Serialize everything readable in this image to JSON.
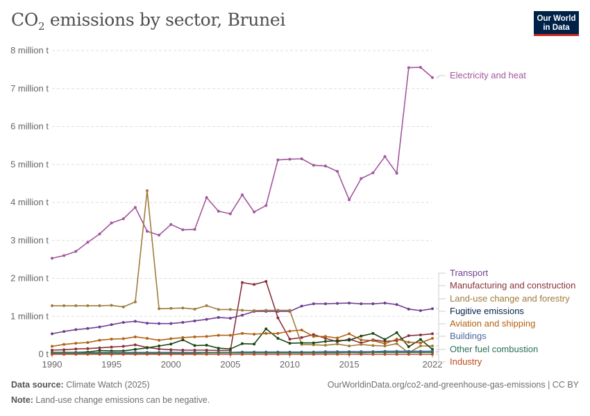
{
  "header": {
    "title_main": "CO",
    "title_sub": "2",
    "title_rest": " emissions by sector, Brunei",
    "logo_line1": "Our World",
    "logo_line2": "in Data"
  },
  "footer": {
    "source_label": "Data source:",
    "source_value": " Climate Watch (2025)",
    "note_label": "Note:",
    "note_value": " Land-use change emissions can be negative.",
    "url": "OurWorldinData.org/co2-and-greenhouse-gas-emissions | CC BY"
  },
  "chart_data": {
    "type": "line",
    "y_tick_labels": [
      "0 t",
      "1 million t",
      "2 million t",
      "3 million t",
      "4 million t",
      "5 million t",
      "6 million t",
      "7 million t",
      "8 million t"
    ],
    "y_ticks": [
      0,
      1,
      2,
      3,
      4,
      5,
      6,
      7,
      8
    ],
    "x_ticks": [
      1990,
      1995,
      2000,
      2005,
      2010,
      2015,
      2022
    ],
    "xlim": [
      1990,
      2022
    ],
    "ylim": [
      0,
      8
    ],
    "y_unit_values": "million t",
    "grid": "horizontal dashed",
    "legend": "right, line-end labels",
    "x": [
      1990,
      1991,
      1992,
      1993,
      1994,
      1995,
      1996,
      1997,
      1998,
      1999,
      2000,
      2001,
      2002,
      2003,
      2004,
      2005,
      2006,
      2007,
      2008,
      2009,
      2010,
      2011,
      2012,
      2013,
      2014,
      2015,
      2016,
      2017,
      2018,
      2019,
      2020,
      2021,
      2022
    ],
    "series": [
      {
        "name": "Electricity and heat",
        "color": "#a2559c",
        "values": [
          2.53,
          2.6,
          2.71,
          2.95,
          3.17,
          3.46,
          3.57,
          3.87,
          3.24,
          3.14,
          3.42,
          3.28,
          3.29,
          4.13,
          3.77,
          3.7,
          4.2,
          3.75,
          3.92,
          5.12,
          5.14,
          5.15,
          4.98,
          4.96,
          4.82,
          4.07,
          4.63,
          4.78,
          5.21,
          4.77,
          7.55,
          7.56,
          7.29
        ]
      },
      {
        "name": "Transport",
        "color": "#6d3e91",
        "values": [
          0.54,
          0.6,
          0.65,
          0.68,
          0.72,
          0.78,
          0.84,
          0.87,
          0.82,
          0.81,
          0.81,
          0.84,
          0.88,
          0.92,
          0.97,
          0.95,
          1.03,
          1.13,
          1.13,
          1.13,
          1.13,
          1.27,
          1.33,
          1.33,
          1.34,
          1.35,
          1.33,
          1.33,
          1.35,
          1.31,
          1.19,
          1.15,
          1.2
        ]
      },
      {
        "name": "Manufacturing and construction",
        "color": "#883039",
        "values": [
          0.11,
          0.12,
          0.14,
          0.15,
          0.17,
          0.19,
          0.21,
          0.25,
          0.18,
          0.14,
          0.12,
          0.11,
          0.11,
          0.11,
          0.1,
          0.1,
          1.89,
          1.84,
          1.92,
          0.96,
          0.4,
          0.44,
          0.52,
          0.42,
          0.33,
          0.4,
          0.3,
          0.38,
          0.34,
          0.36,
          0.49,
          0.51,
          0.54
        ]
      },
      {
        "name": "Land-use change and forestry",
        "color": "#a07b3b",
        "values": [
          1.28,
          1.28,
          1.28,
          1.28,
          1.28,
          1.29,
          1.25,
          1.38,
          4.31,
          1.2,
          1.21,
          1.22,
          1.19,
          1.28,
          1.18,
          1.18,
          1.16,
          1.15,
          1.16,
          1.16,
          1.16,
          0.26,
          0.25,
          0.24,
          0.27,
          0.22,
          0.26,
          0.23,
          0.22,
          0.28,
          0.04,
          0.22,
          0.22
        ]
      },
      {
        "name": "Fugitive emissions",
        "color": "#18470f",
        "values": [
          0.05,
          0.05,
          0.05,
          0.06,
          0.1,
          0.09,
          0.09,
          0.13,
          0.17,
          0.22,
          0.27,
          0.38,
          0.23,
          0.24,
          0.16,
          0.14,
          0.28,
          0.27,
          0.67,
          0.42,
          0.29,
          0.3,
          0.3,
          0.34,
          0.36,
          0.37,
          0.48,
          0.55,
          0.39,
          0.57,
          0.2,
          0.39,
          0.13
        ]
      },
      {
        "name": "Aviation and shipping",
        "color": "#b16214",
        "values": [
          0.21,
          0.26,
          0.29,
          0.31,
          0.37,
          0.4,
          0.41,
          0.46,
          0.42,
          0.37,
          0.41,
          0.44,
          0.46,
          0.47,
          0.5,
          0.5,
          0.55,
          0.53,
          0.55,
          0.55,
          0.61,
          0.64,
          0.47,
          0.47,
          0.43,
          0.54,
          0.38,
          0.36,
          0.28,
          0.4,
          0.32,
          0.3,
          0.42
        ]
      },
      {
        "name": "Buildings",
        "color": "#4c6a9c",
        "values": [
          0.04,
          0.04,
          0.04,
          0.04,
          0.05,
          0.05,
          0.05,
          0.05,
          0.05,
          0.05,
          0.05,
          0.05,
          0.05,
          0.05,
          0.05,
          0.05,
          0.06,
          0.06,
          0.06,
          0.06,
          0.06,
          0.06,
          0.06,
          0.07,
          0.07,
          0.07,
          0.07,
          0.07,
          0.08,
          0.08,
          0.08,
          0.08,
          0.08
        ]
      },
      {
        "name": "Other fuel combustion",
        "color": "#286f56",
        "values": [
          0.03,
          0.03,
          0.03,
          0.03,
          0.03,
          0.03,
          0.03,
          0.03,
          0.03,
          0.03,
          0.03,
          0.03,
          0.03,
          0.04,
          0.04,
          0.04,
          0.04,
          0.04,
          0.04,
          0.04,
          0.04,
          0.04,
          0.04,
          0.04,
          0.04,
          0.05,
          0.04,
          0.05,
          0.05,
          0.05,
          0.05,
          0.05,
          0.05
        ]
      },
      {
        "name": "Industry",
        "color": "#bc4a1e",
        "values": [
          0.0,
          0.0,
          0.0,
          0.0,
          0.0,
          0.0,
          0.0,
          0.0,
          0.0,
          0.0,
          0.0,
          0.0,
          0.0,
          0.0,
          0.0,
          0.0,
          0.0,
          0.0,
          0.0,
          0.0,
          0.0,
          0.0,
          0.0,
          0.0,
          0.0,
          0.0,
          0.0,
          0.0,
          0.0,
          0.0,
          0.0,
          0.0,
          0.0
        ]
      }
    ]
  }
}
